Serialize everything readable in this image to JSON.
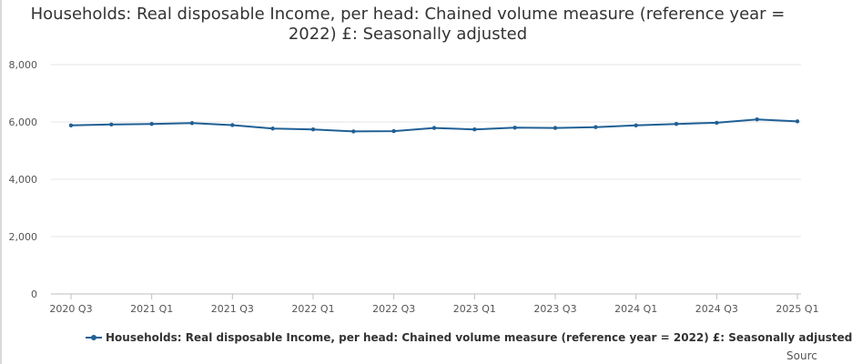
{
  "chart_data": {
    "type": "line",
    "title": "Households: Real disposable Income, per head: Chained volume measure (reference year = 2022) £: Seasonally adjusted",
    "xlabel": "",
    "ylabel": "",
    "ylim": [
      0,
      8000
    ],
    "yticks": [
      0,
      2000,
      4000,
      6000,
      8000
    ],
    "ytick_labels": [
      "0",
      "2,000",
      "4,000",
      "6,000",
      "8,000"
    ],
    "x": [
      "2020 Q3",
      "2020 Q4",
      "2021 Q1",
      "2021 Q2",
      "2021 Q3",
      "2021 Q4",
      "2022 Q1",
      "2022 Q2",
      "2022 Q3",
      "2022 Q4",
      "2023 Q1",
      "2023 Q2",
      "2023 Q3",
      "2023 Q4",
      "2024 Q1",
      "2024 Q2",
      "2024 Q3",
      "2024 Q4",
      "2025 Q1"
    ],
    "xtick_labels": [
      "2020 Q3",
      "2021 Q1",
      "2021 Q3",
      "2022 Q1",
      "2022 Q3",
      "2023 Q1",
      "2023 Q3",
      "2024 Q1",
      "2024 Q3",
      "2025 Q1"
    ],
    "series": [
      {
        "name": "Households: Real disposable Income, per head: Chained volume measure (reference year = 2022) £: Seasonally adjusted",
        "color": "#206095",
        "values": [
          5880,
          5910,
          5930,
          5960,
          5890,
          5770,
          5740,
          5670,
          5680,
          5790,
          5740,
          5800,
          5790,
          5820,
          5880,
          5930,
          5970,
          6090,
          6020
        ]
      }
    ],
    "grid": true,
    "legend": "bottom"
  },
  "source_label": "Sourc"
}
